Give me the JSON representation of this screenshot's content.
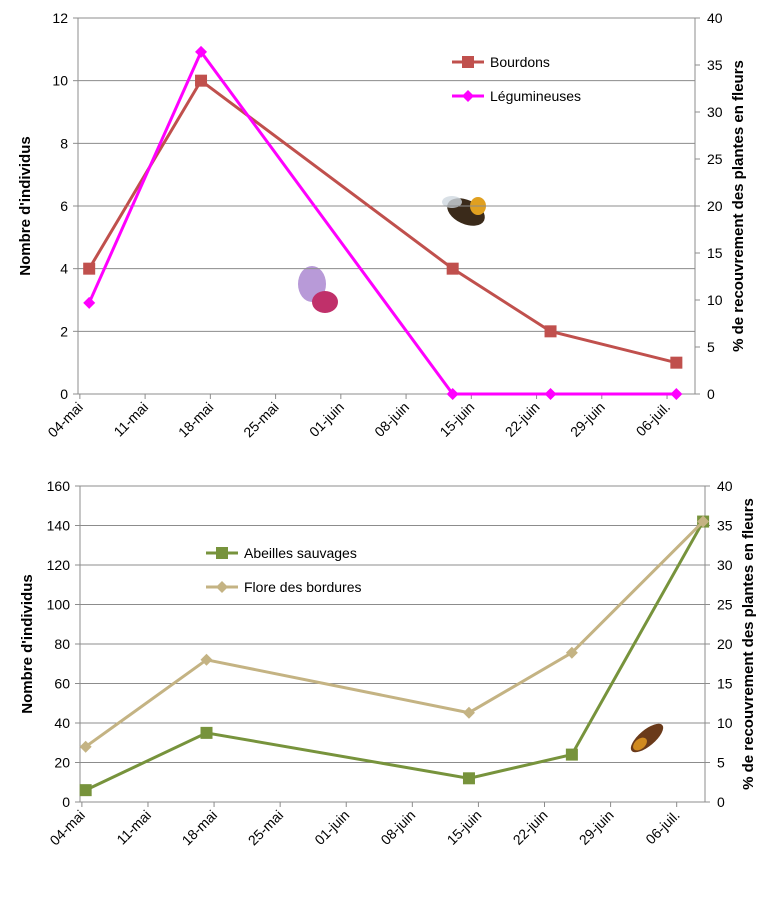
{
  "chart_data": [
    {
      "type": "line",
      "y_label": "Nombre d'individus",
      "y2_label": "% de recouvrement des plantes en fleurs",
      "x": [
        125,
        137,
        164,
        174.5,
        188
      ],
      "xlim": [
        123.8,
        190
      ],
      "xticks": [
        {
          "value": 124,
          "label": "04-mai"
        },
        {
          "value": 131,
          "label": "11-mai"
        },
        {
          "value": 138,
          "label": "18-mai"
        },
        {
          "value": 145,
          "label": "25-mai"
        },
        {
          "value": 152,
          "label": "01-juin"
        },
        {
          "value": 159,
          "label": "08-juin"
        },
        {
          "value": 166,
          "label": "15-juin"
        },
        {
          "value": 173,
          "label": "22-juin"
        },
        {
          "value": 180,
          "label": "29-juin"
        },
        {
          "value": 187,
          "label": "06-juil."
        }
      ],
      "ylim": [
        0,
        12
      ],
      "yticks": [
        0,
        2,
        4,
        6,
        8,
        10,
        12
      ],
      "y2lim": [
        0,
        40
      ],
      "y2ticks": [
        0,
        5,
        10,
        15,
        20,
        25,
        30,
        35,
        40
      ],
      "grid": true,
      "legend": "upper right",
      "series": [
        {
          "name": "Bourdons",
          "color": "#c0504d",
          "marker": "square",
          "values": [
            4,
            10,
            4,
            2,
            1
          ]
        },
        {
          "name": "Légumineuses",
          "color": "#ff00ff",
          "marker": "diamond",
          "axis": "y2",
          "values": [
            9.7,
            36.4,
            0,
            0,
            0
          ]
        }
      ]
    },
    {
      "type": "line",
      "y_label": "Nombre d'individus",
      "y2_label": "% de recouvrement des plantes en fleurs",
      "x": [
        124.4,
        137.2,
        165,
        175.9,
        189.8
      ],
      "xlim": [
        123.8,
        190
      ],
      "xticks": [
        {
          "value": 124,
          "label": "04-mai"
        },
        {
          "value": 131,
          "label": "11-mai"
        },
        {
          "value": 138,
          "label": "18-mai"
        },
        {
          "value": 145,
          "label": "25-mai"
        },
        {
          "value": 152,
          "label": "01-juin"
        },
        {
          "value": 159,
          "label": "08-juin"
        },
        {
          "value": 166,
          "label": "15-juin"
        },
        {
          "value": 173,
          "label": "22-juin"
        },
        {
          "value": 180,
          "label": "29-juin"
        },
        {
          "value": 187,
          "label": "06-juil."
        }
      ],
      "ylim": [
        0,
        160
      ],
      "yticks": [
        0,
        20,
        40,
        60,
        80,
        100,
        120,
        140,
        160
      ],
      "y2lim": [
        0,
        40
      ],
      "y2ticks": [
        0,
        5,
        10,
        15,
        20,
        25,
        30,
        35,
        40
      ],
      "grid": true,
      "legend": "upper left",
      "series": [
        {
          "name": "Abeilles sauvages",
          "color": "#77933c",
          "marker": "square",
          "values": [
            6,
            35,
            12,
            24,
            142
          ]
        },
        {
          "name": "Flore des bordures",
          "color": "#c4b383",
          "marker": "diamond",
          "axis": "y2",
          "values": [
            7,
            18,
            11.3,
            18.9,
            35.5
          ]
        }
      ]
    }
  ]
}
